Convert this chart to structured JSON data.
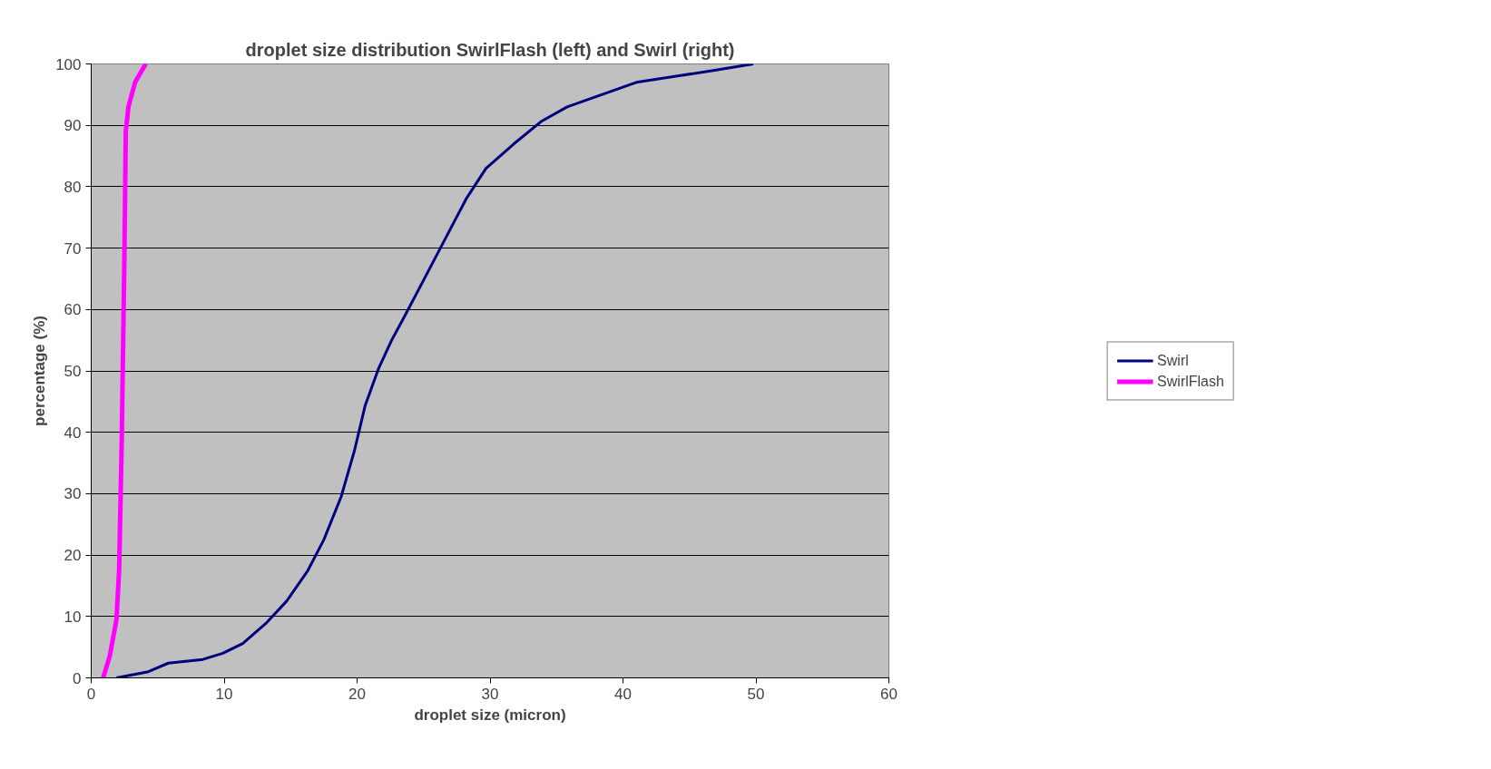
{
  "chart_data": {
    "type": "line",
    "title": "droplet size distribution SwirlFlash (left) and Swirl (right)",
    "xlabel": "droplet size (micron)",
    "ylabel": "percentage (%)",
    "xlim": [
      0,
      60
    ],
    "xticks": [
      0,
      10,
      20,
      30,
      40,
      50,
      60
    ],
    "ylim": [
      0,
      100
    ],
    "yticks": [
      0,
      10,
      20,
      30,
      40,
      50,
      60,
      70,
      80,
      90,
      100
    ],
    "grid": "y",
    "legend": "right",
    "marker": "none",
    "line_style": "solid",
    "series": [
      {
        "name": "Swirl",
        "color": "#000080",
        "x": [
          1.9,
          4.3,
          5.8,
          8.4,
          9.9,
          11.4,
          13.2,
          14.7,
          16.3,
          17.5,
          18.8,
          19.8,
          20.6,
          21.6,
          22.6,
          23.6,
          25.2,
          26.7,
          28.2,
          29.7,
          31.8,
          33.9,
          35.8,
          38.4,
          41,
          44,
          47,
          49.8
        ],
        "values": [
          0,
          1,
          2.4,
          3,
          4,
          5.6,
          9,
          12.5,
          17.5,
          22.5,
          29.5,
          37,
          44.3,
          50.3,
          55,
          59,
          65.6,
          71.8,
          78,
          83,
          87,
          90.7,
          93,
          95,
          97,
          98,
          99,
          100
        ]
      },
      {
        "name": "SwirlFlash",
        "color": "#ff00ff",
        "x": [
          0.9,
          1.4,
          1.9,
          2.1,
          2.3,
          2.5,
          2.6,
          2.8,
          3.3,
          4.1
        ],
        "values": [
          0,
          3.6,
          9.5,
          17.5,
          39,
          69,
          89,
          93,
          97,
          100
        ]
      }
    ]
  }
}
